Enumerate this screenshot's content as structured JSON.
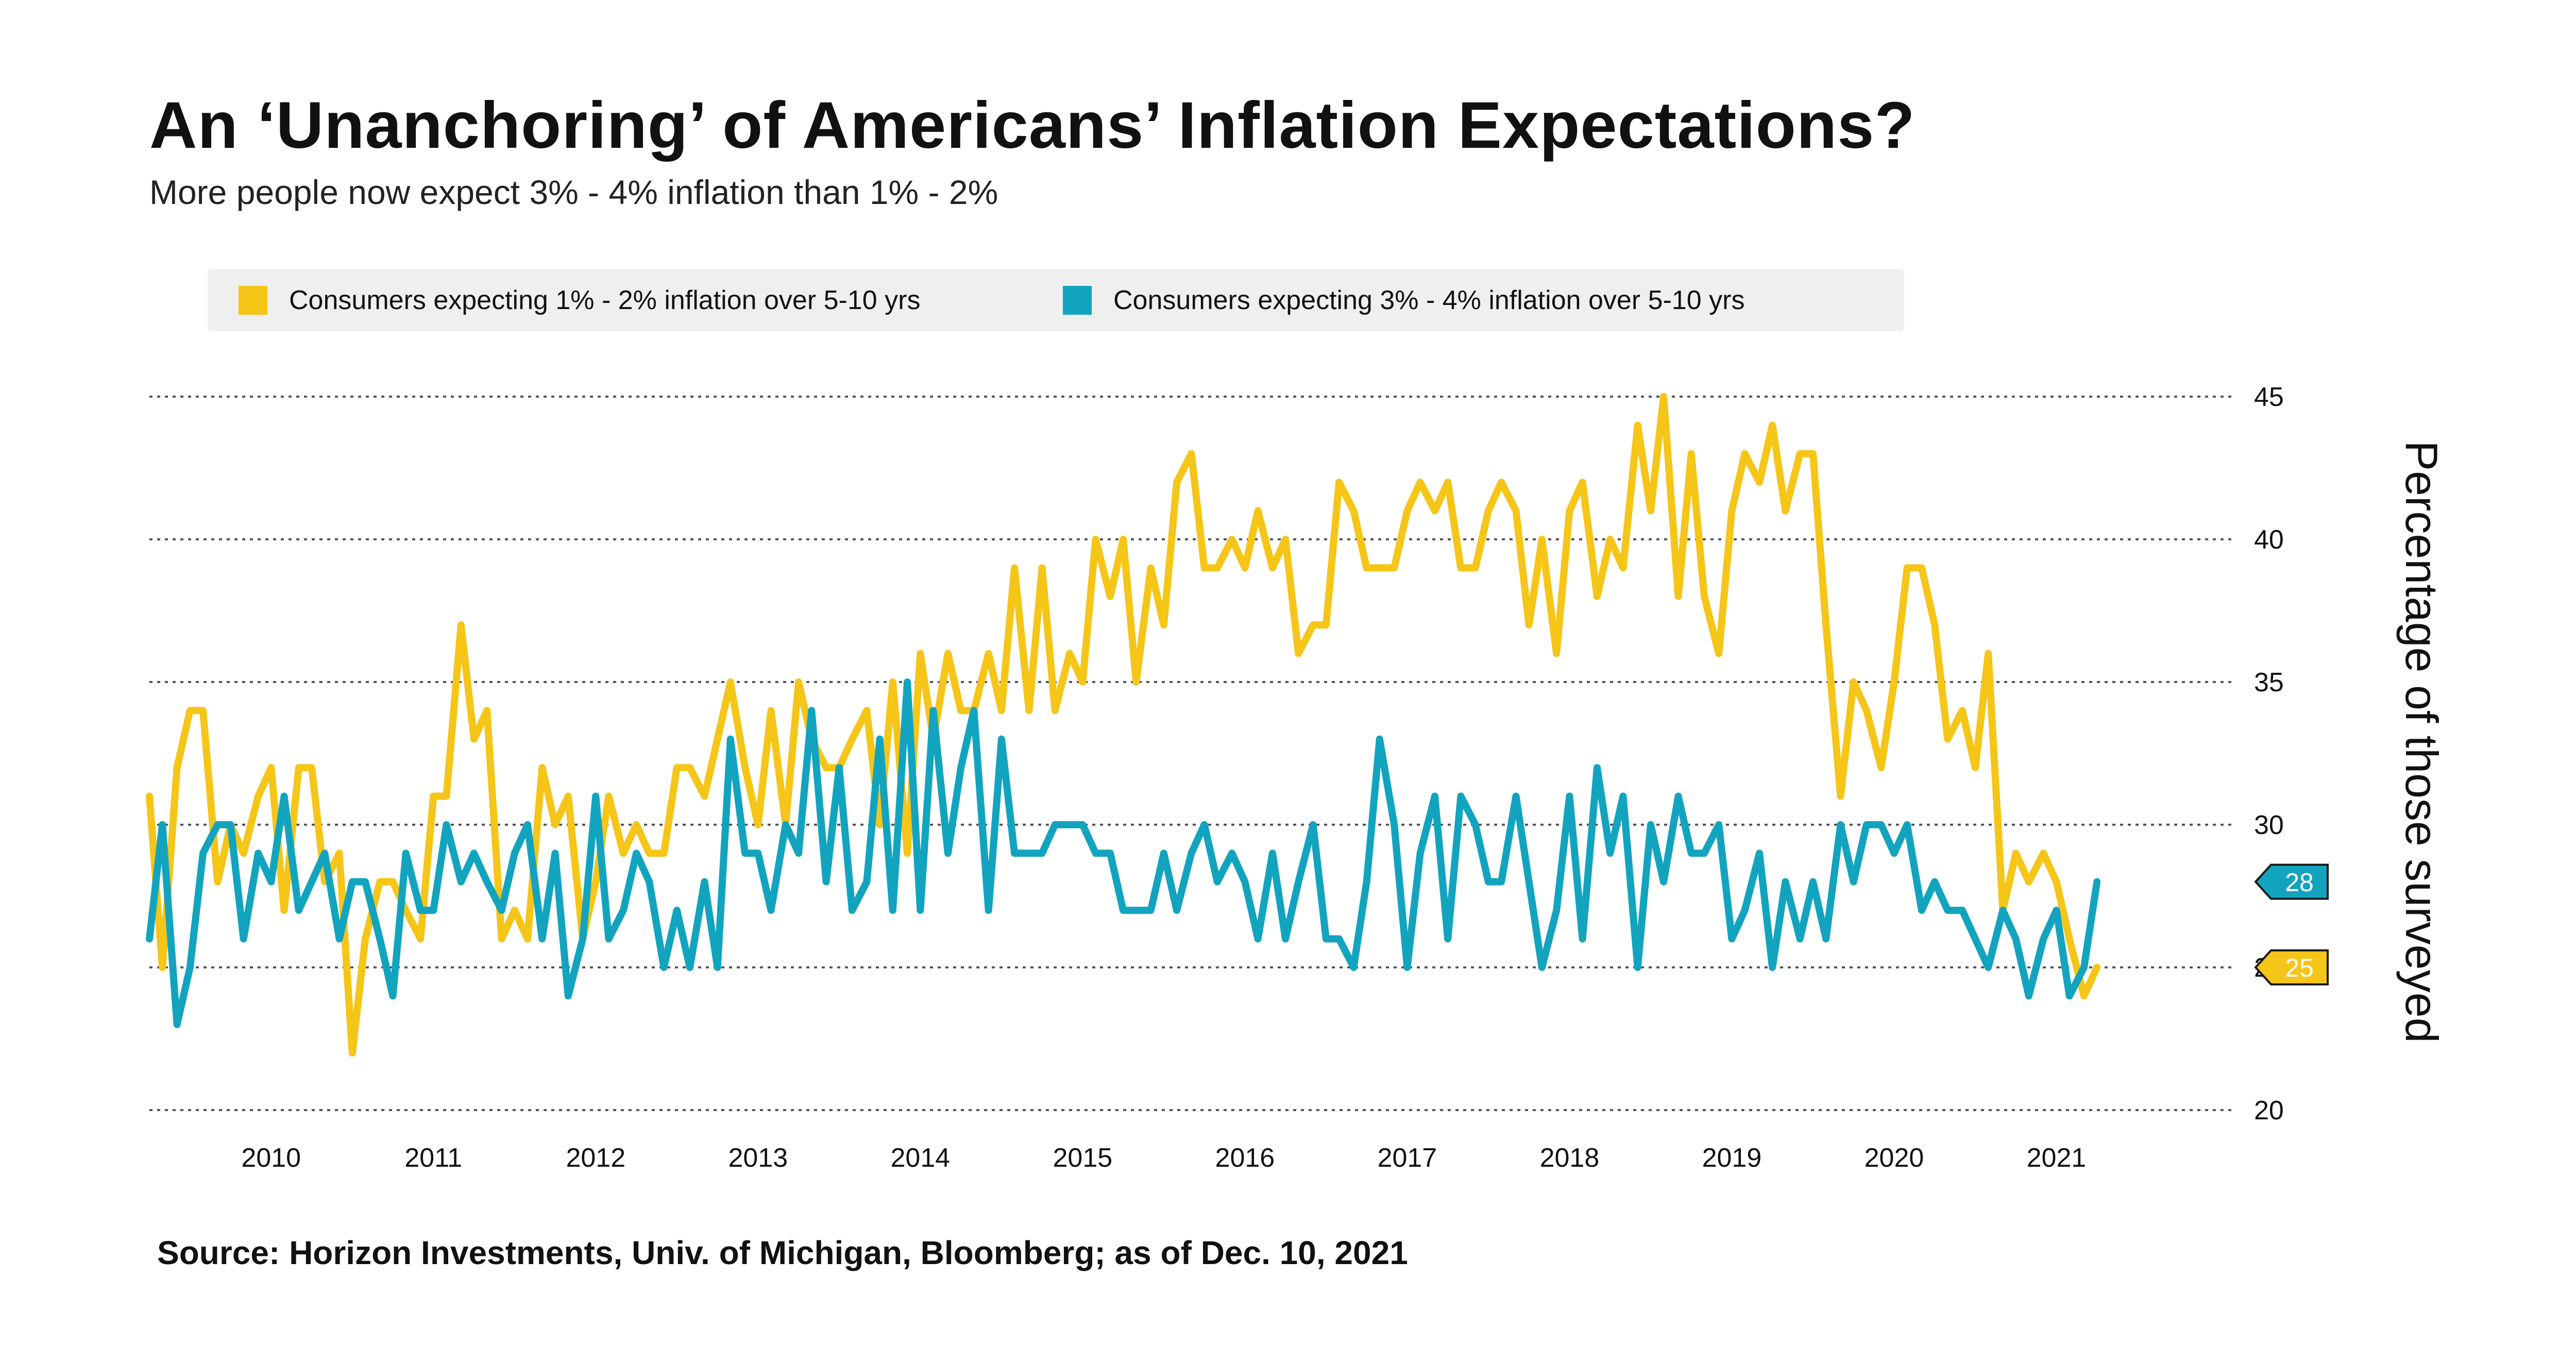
{
  "header": {
    "title": "An ‘Unanchoring’ of Americans’ Inflation Expectations?",
    "subtitle": "More people now expect 3% - 4% inflation than 1% - 2%"
  },
  "legend": {
    "items": [
      {
        "label": "Consumers expecting 1% - 2% inflation over 5-10 yrs",
        "color": "#F5C518"
      },
      {
        "label": "Consumers expecting 3% - 4% inflation over 5-10 yrs",
        "color": "#12A4BE"
      }
    ]
  },
  "source": "Source: Horizon Investments, Univ. of Michigan, Bloomberg; as of Dec. 10, 2021",
  "chart_data": {
    "type": "line",
    "title": "An ‘Unanchoring’ of Americans’ Inflation Expectations?",
    "subtitle": "More people now expect 3% - 4% inflation than 1% - 2%",
    "xlabel": "",
    "ylabel": "Percentage of those surveyed",
    "ylim": [
      20,
      45
    ],
    "xlim": [
      2009.25,
      2021.9
    ],
    "yticks": [
      20,
      25,
      30,
      35,
      40,
      45
    ],
    "xticks": [
      2010,
      2011,
      2012,
      2013,
      2014,
      2015,
      2016,
      2017,
      2018,
      2019,
      2020,
      2021
    ],
    "xtick_labels": [
      "2010",
      "2011",
      "2012",
      "2013",
      "2014",
      "2015",
      "2016",
      "2017",
      "2018",
      "2019",
      "2020",
      "2021"
    ],
    "grid": true,
    "legend_position": "top",
    "series": [
      {
        "name": "Consumers expecting 1% - 2% inflation over 5-10 yrs",
        "color": "#F5C518",
        "end_label": "25",
        "points": [
          [
            2009.25,
            31
          ],
          [
            2009.33,
            25
          ],
          [
            2009.42,
            32
          ],
          [
            2009.5,
            34
          ],
          [
            2009.58,
            34
          ],
          [
            2009.67,
            28
          ],
          [
            2009.75,
            30
          ],
          [
            2009.83,
            29
          ],
          [
            2009.92,
            31
          ],
          [
            2010.0,
            32
          ],
          [
            2010.08,
            27
          ],
          [
            2010.17,
            32
          ],
          [
            2010.25,
            32
          ],
          [
            2010.33,
            28
          ],
          [
            2010.42,
            29
          ],
          [
            2010.5,
            22
          ],
          [
            2010.58,
            26
          ],
          [
            2010.67,
            28
          ],
          [
            2010.75,
            28
          ],
          [
            2010.83,
            27
          ],
          [
            2010.92,
            26
          ],
          [
            2011.0,
            31
          ],
          [
            2011.08,
            31
          ],
          [
            2011.17,
            37
          ],
          [
            2011.25,
            33
          ],
          [
            2011.33,
            34
          ],
          [
            2011.42,
            26
          ],
          [
            2011.5,
            27
          ],
          [
            2011.58,
            26
          ],
          [
            2011.67,
            32
          ],
          [
            2011.75,
            30
          ],
          [
            2011.83,
            31
          ],
          [
            2011.92,
            26
          ],
          [
            2012.0,
            28
          ],
          [
            2012.08,
            31
          ],
          [
            2012.17,
            29
          ],
          [
            2012.25,
            30
          ],
          [
            2012.33,
            29
          ],
          [
            2012.42,
            29
          ],
          [
            2012.5,
            32
          ],
          [
            2012.58,
            32
          ],
          [
            2012.67,
            31
          ],
          [
            2012.75,
            33
          ],
          [
            2012.83,
            35
          ],
          [
            2012.92,
            32
          ],
          [
            2013.0,
            30
          ],
          [
            2013.08,
            34
          ],
          [
            2013.17,
            30
          ],
          [
            2013.25,
            35
          ],
          [
            2013.33,
            33
          ],
          [
            2013.42,
            32
          ],
          [
            2013.5,
            32
          ],
          [
            2013.58,
            33
          ],
          [
            2013.67,
            34
          ],
          [
            2013.75,
            30
          ],
          [
            2013.83,
            35
          ],
          [
            2013.92,
            29
          ],
          [
            2014.0,
            36
          ],
          [
            2014.08,
            33
          ],
          [
            2014.17,
            36
          ],
          [
            2014.25,
            34
          ],
          [
            2014.33,
            34
          ],
          [
            2014.42,
            36
          ],
          [
            2014.5,
            34
          ],
          [
            2014.58,
            39
          ],
          [
            2014.67,
            34
          ],
          [
            2014.75,
            39
          ],
          [
            2014.83,
            34
          ],
          [
            2014.92,
            36
          ],
          [
            2015.0,
            35
          ],
          [
            2015.08,
            40
          ],
          [
            2015.17,
            38
          ],
          [
            2015.25,
            40
          ],
          [
            2015.33,
            35
          ],
          [
            2015.42,
            39
          ],
          [
            2015.5,
            37
          ],
          [
            2015.58,
            42
          ],
          [
            2015.67,
            43
          ],
          [
            2015.75,
            39
          ],
          [
            2015.83,
            39
          ],
          [
            2015.92,
            40
          ],
          [
            2016.0,
            39
          ],
          [
            2016.08,
            41
          ],
          [
            2016.17,
            39
          ],
          [
            2016.25,
            40
          ],
          [
            2016.33,
            36
          ],
          [
            2016.42,
            37
          ],
          [
            2016.5,
            37
          ],
          [
            2016.58,
            42
          ],
          [
            2016.67,
            41
          ],
          [
            2016.75,
            39
          ],
          [
            2016.83,
            39
          ],
          [
            2016.92,
            39
          ],
          [
            2017.0,
            41
          ],
          [
            2017.08,
            42
          ],
          [
            2017.17,
            41
          ],
          [
            2017.25,
            42
          ],
          [
            2017.33,
            39
          ],
          [
            2017.42,
            39
          ],
          [
            2017.5,
            41
          ],
          [
            2017.58,
            42
          ],
          [
            2017.67,
            41
          ],
          [
            2017.75,
            37
          ],
          [
            2017.83,
            40
          ],
          [
            2017.92,
            36
          ],
          [
            2018.0,
            41
          ],
          [
            2018.08,
            42
          ],
          [
            2018.17,
            38
          ],
          [
            2018.25,
            40
          ],
          [
            2018.33,
            39
          ],
          [
            2018.42,
            44
          ],
          [
            2018.5,
            41
          ],
          [
            2018.58,
            45
          ],
          [
            2018.67,
            38
          ],
          [
            2018.75,
            43
          ],
          [
            2018.83,
            38
          ],
          [
            2018.92,
            36
          ],
          [
            2019.0,
            41
          ],
          [
            2019.08,
            43
          ],
          [
            2019.17,
            42
          ],
          [
            2019.25,
            44
          ],
          [
            2019.33,
            41
          ],
          [
            2019.42,
            43
          ],
          [
            2019.5,
            43
          ],
          [
            2019.58,
            37
          ],
          [
            2019.67,
            31
          ],
          [
            2019.75,
            35
          ],
          [
            2019.83,
            34
          ],
          [
            2019.92,
            32
          ],
          [
            2020.0,
            35
          ],
          [
            2020.08,
            39
          ],
          [
            2020.17,
            39
          ],
          [
            2020.25,
            37
          ],
          [
            2020.33,
            33
          ],
          [
            2020.42,
            34
          ],
          [
            2020.5,
            32
          ],
          [
            2020.58,
            36
          ],
          [
            2020.67,
            27
          ],
          [
            2020.75,
            29
          ],
          [
            2020.83,
            28
          ],
          [
            2020.92,
            29
          ],
          [
            2021.0,
            28
          ],
          [
            2021.08,
            26
          ],
          [
            2021.17,
            24
          ],
          [
            2021.25,
            25
          ]
        ]
      },
      {
        "name": "Consumers expecting 3% - 4% inflation over 5-10 yrs",
        "color": "#12A4BE",
        "end_label": "28",
        "points": [
          [
            2009.25,
            26
          ],
          [
            2009.33,
            30
          ],
          [
            2009.42,
            23
          ],
          [
            2009.5,
            25
          ],
          [
            2009.58,
            29
          ],
          [
            2009.67,
            30
          ],
          [
            2009.75,
            30
          ],
          [
            2009.83,
            26
          ],
          [
            2009.92,
            29
          ],
          [
            2010.0,
            28
          ],
          [
            2010.08,
            31
          ],
          [
            2010.17,
            27
          ],
          [
            2010.25,
            28
          ],
          [
            2010.33,
            29
          ],
          [
            2010.42,
            26
          ],
          [
            2010.5,
            28
          ],
          [
            2010.58,
            28
          ],
          [
            2010.67,
            26
          ],
          [
            2010.75,
            24
          ],
          [
            2010.83,
            29
          ],
          [
            2010.92,
            27
          ],
          [
            2011.0,
            27
          ],
          [
            2011.08,
            30
          ],
          [
            2011.17,
            28
          ],
          [
            2011.25,
            29
          ],
          [
            2011.33,
            28
          ],
          [
            2011.42,
            27
          ],
          [
            2011.5,
            29
          ],
          [
            2011.58,
            30
          ],
          [
            2011.67,
            26
          ],
          [
            2011.75,
            29
          ],
          [
            2011.83,
            24
          ],
          [
            2011.92,
            26
          ],
          [
            2012.0,
            31
          ],
          [
            2012.08,
            26
          ],
          [
            2012.17,
            27
          ],
          [
            2012.25,
            29
          ],
          [
            2012.33,
            28
          ],
          [
            2012.42,
            25
          ],
          [
            2012.5,
            27
          ],
          [
            2012.58,
            25
          ],
          [
            2012.67,
            28
          ],
          [
            2012.75,
            25
          ],
          [
            2012.83,
            33
          ],
          [
            2012.92,
            29
          ],
          [
            2013.0,
            29
          ],
          [
            2013.08,
            27
          ],
          [
            2013.17,
            30
          ],
          [
            2013.25,
            29
          ],
          [
            2013.33,
            34
          ],
          [
            2013.42,
            28
          ],
          [
            2013.5,
            32
          ],
          [
            2013.58,
            27
          ],
          [
            2013.67,
            28
          ],
          [
            2013.75,
            33
          ],
          [
            2013.83,
            27
          ],
          [
            2013.92,
            35
          ],
          [
            2014.0,
            27
          ],
          [
            2014.08,
            34
          ],
          [
            2014.17,
            29
          ],
          [
            2014.25,
            32
          ],
          [
            2014.33,
            34
          ],
          [
            2014.42,
            27
          ],
          [
            2014.5,
            33
          ],
          [
            2014.58,
            29
          ],
          [
            2014.67,
            29
          ],
          [
            2014.75,
            29
          ],
          [
            2014.83,
            30
          ],
          [
            2014.92,
            30
          ],
          [
            2015.0,
            30
          ],
          [
            2015.08,
            29
          ],
          [
            2015.17,
            29
          ],
          [
            2015.25,
            27
          ],
          [
            2015.33,
            27
          ],
          [
            2015.42,
            27
          ],
          [
            2015.5,
            29
          ],
          [
            2015.58,
            27
          ],
          [
            2015.67,
            29
          ],
          [
            2015.75,
            30
          ],
          [
            2015.83,
            28
          ],
          [
            2015.92,
            29
          ],
          [
            2016.0,
            28
          ],
          [
            2016.08,
            26
          ],
          [
            2016.17,
            29
          ],
          [
            2016.25,
            26
          ],
          [
            2016.33,
            28
          ],
          [
            2016.42,
            30
          ],
          [
            2016.5,
            26
          ],
          [
            2016.58,
            26
          ],
          [
            2016.67,
            25
          ],
          [
            2016.75,
            28
          ],
          [
            2016.83,
            33
          ],
          [
            2016.92,
            30
          ],
          [
            2017.0,
            25
          ],
          [
            2017.08,
            29
          ],
          [
            2017.17,
            31
          ],
          [
            2017.25,
            26
          ],
          [
            2017.33,
            31
          ],
          [
            2017.42,
            30
          ],
          [
            2017.5,
            28
          ],
          [
            2017.58,
            28
          ],
          [
            2017.67,
            31
          ],
          [
            2017.75,
            28
          ],
          [
            2017.83,
            25
          ],
          [
            2017.92,
            27
          ],
          [
            2018.0,
            31
          ],
          [
            2018.08,
            26
          ],
          [
            2018.17,
            32
          ],
          [
            2018.25,
            29
          ],
          [
            2018.33,
            31
          ],
          [
            2018.42,
            25
          ],
          [
            2018.5,
            30
          ],
          [
            2018.58,
            28
          ],
          [
            2018.67,
            31
          ],
          [
            2018.75,
            29
          ],
          [
            2018.83,
            29
          ],
          [
            2018.92,
            30
          ],
          [
            2019.0,
            26
          ],
          [
            2019.08,
            27
          ],
          [
            2019.17,
            29
          ],
          [
            2019.25,
            25
          ],
          [
            2019.33,
            28
          ],
          [
            2019.42,
            26
          ],
          [
            2019.5,
            28
          ],
          [
            2019.58,
            26
          ],
          [
            2019.67,
            30
          ],
          [
            2019.75,
            28
          ],
          [
            2019.83,
            30
          ],
          [
            2019.92,
            30
          ],
          [
            2020.0,
            29
          ],
          [
            2020.08,
            30
          ],
          [
            2020.17,
            27
          ],
          [
            2020.25,
            28
          ],
          [
            2020.33,
            27
          ],
          [
            2020.42,
            27
          ],
          [
            2020.5,
            26
          ],
          [
            2020.58,
            25
          ],
          [
            2020.67,
            27
          ],
          [
            2020.75,
            26
          ],
          [
            2020.83,
            24
          ],
          [
            2020.92,
            26
          ],
          [
            2021.0,
            27
          ],
          [
            2021.08,
            24
          ],
          [
            2021.17,
            25
          ],
          [
            2021.25,
            28
          ]
        ]
      }
    ]
  }
}
